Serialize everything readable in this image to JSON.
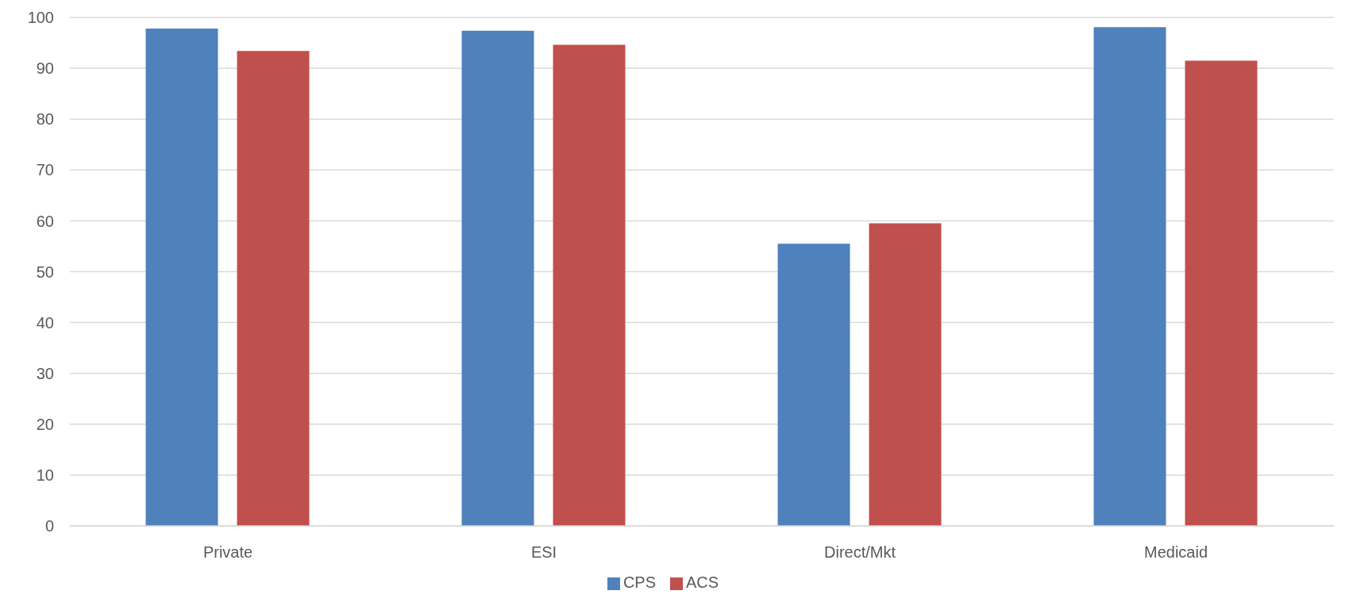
{
  "chart_data": {
    "type": "bar",
    "categories": [
      "Private",
      "ESI",
      "Direct/Mkt",
      "Medicaid"
    ],
    "series": [
      {
        "name": "CPS",
        "color": "#4f81bd",
        "values": [
          97.8,
          97.4,
          55.5,
          98.1
        ]
      },
      {
        "name": "ACS",
        "color": "#c0504d",
        "values": [
          93.4,
          94.6,
          59.5,
          91.5
        ]
      }
    ],
    "ylim": [
      0,
      100
    ],
    "yticks": [
      0,
      10,
      20,
      30,
      40,
      50,
      60,
      70,
      80,
      90,
      100
    ],
    "grid": "y",
    "legend": "bottom"
  }
}
